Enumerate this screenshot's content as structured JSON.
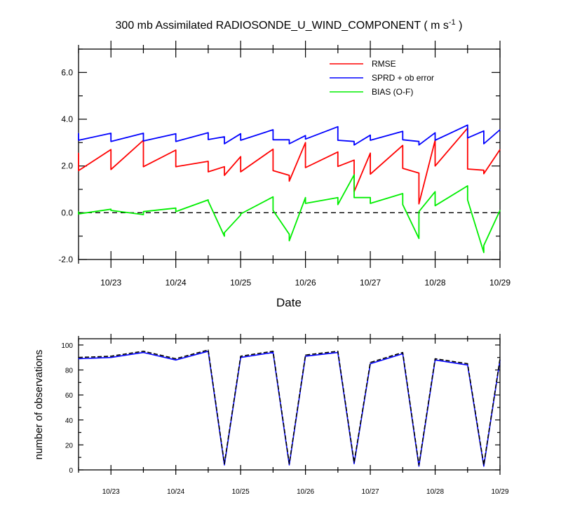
{
  "figure_title": {
    "main": "300 mb Assimilated RADIOSONDE_U_WIND_COMPONENT ( m s",
    "sup": "-1",
    "close": " )"
  },
  "chart_data": [
    {
      "type": "line",
      "title": "300 mb Assimilated RADIOSONDE_U_WIND_COMPONENT ( m s-1 )",
      "xlabel": "Date",
      "ylabel": "",
      "xlim": [
        22.5,
        29.0
      ],
      "ylim": [
        -2.0,
        7.0
      ],
      "x_tick_values": [
        23,
        24,
        25,
        26,
        27,
        28,
        29
      ],
      "x_tick_labels": [
        "10/23",
        "10/24",
        "10/25",
        "10/26",
        "10/27",
        "10/28",
        "10/29"
      ],
      "y_tick_values": [
        -2.0,
        0.0,
        2.0,
        4.0,
        6.0
      ],
      "y_tick_labels": [
        "-2.0",
        "0.0",
        "2.0",
        "4.0",
        "6.0"
      ],
      "legend_position": "top-right",
      "reference_line": {
        "y": 0.0,
        "style": "dashed",
        "color": "#000000"
      },
      "series": [
        {
          "name": "RMSE",
          "color": "#ff0000",
          "x": [
            22.5,
            22.5,
            23.0,
            23.0,
            23.5,
            23.5,
            24.0,
            24.0,
            24.5,
            24.5,
            24.75,
            24.75,
            25.0,
            25.0,
            25.5,
            25.5,
            25.75,
            25.75,
            26.0,
            26.0,
            26.5,
            26.5,
            26.75,
            26.75,
            27.0,
            27.0,
            27.5,
            27.5,
            27.75,
            27.75,
            28.0,
            28.0,
            28.5,
            28.5,
            28.75,
            28.75,
            29.0
          ],
          "y": [
            2.55,
            1.8,
            2.7,
            1.85,
            3.1,
            1.97,
            2.68,
            1.97,
            2.2,
            1.75,
            1.97,
            1.6,
            2.4,
            1.75,
            2.72,
            1.8,
            1.6,
            1.35,
            3.0,
            1.93,
            2.6,
            1.98,
            2.25,
            0.9,
            2.55,
            1.65,
            2.88,
            1.9,
            1.7,
            0.38,
            3.1,
            2.0,
            3.62,
            1.87,
            1.82,
            1.67,
            2.7
          ]
        },
        {
          "name": "SPRD + ob error",
          "color": "#0000ff",
          "x": [
            22.5,
            22.5,
            23.0,
            23.0,
            23.5,
            23.5,
            24.0,
            24.0,
            24.5,
            24.5,
            24.75,
            24.75,
            25.0,
            25.0,
            25.5,
            25.5,
            25.75,
            25.75,
            26.0,
            26.0,
            26.5,
            26.5,
            26.75,
            26.75,
            27.0,
            27.0,
            27.5,
            27.5,
            27.75,
            27.75,
            28.0,
            28.0,
            28.5,
            28.5,
            28.75,
            28.75,
            29.0
          ],
          "y": [
            3.4,
            3.1,
            3.4,
            3.05,
            3.4,
            3.07,
            3.38,
            3.05,
            3.42,
            3.13,
            3.25,
            2.95,
            3.38,
            3.1,
            3.55,
            3.12,
            3.12,
            2.95,
            3.3,
            3.15,
            3.68,
            3.1,
            3.05,
            2.9,
            3.32,
            3.1,
            3.48,
            3.12,
            3.05,
            2.9,
            3.42,
            3.1,
            3.75,
            3.2,
            3.5,
            2.95,
            3.55
          ]
        },
        {
          "name": "BIAS (O-F)",
          "color": "#00ee00",
          "x": [
            22.5,
            22.5,
            23.0,
            23.0,
            23.5,
            23.5,
            24.0,
            24.0,
            24.5,
            24.5,
            24.75,
            24.75,
            25.0,
            25.0,
            25.5,
            25.5,
            25.75,
            25.75,
            26.0,
            26.0,
            26.5,
            26.5,
            26.75,
            26.75,
            27.0,
            27.0,
            27.5,
            27.5,
            27.75,
            27.75,
            28.0,
            28.0,
            28.5,
            28.5,
            28.75,
            28.75,
            29.0
          ],
          "y": [
            0.05,
            -0.05,
            0.15,
            0.1,
            -0.08,
            0.05,
            0.2,
            0.05,
            0.55,
            0.5,
            -1.0,
            -0.85,
            -0.1,
            -0.05,
            0.68,
            0.1,
            -0.92,
            -1.2,
            0.65,
            0.4,
            0.65,
            0.35,
            1.62,
            0.65,
            0.65,
            0.4,
            0.82,
            0.35,
            -1.1,
            0.05,
            0.9,
            0.3,
            1.15,
            0.55,
            -1.7,
            -1.4,
            0.1
          ]
        }
      ]
    },
    {
      "type": "line",
      "xlabel": "",
      "ylabel": "number of observations",
      "xlim": [
        22.5,
        29.0
      ],
      "ylim": [
        0,
        105
      ],
      "x_tick_values": [
        23,
        24,
        25,
        26,
        27,
        28,
        29
      ],
      "x_tick_labels": [
        "10/23",
        "10/24",
        "10/25",
        "10/26",
        "10/27",
        "10/28",
        "10/29"
      ],
      "y_tick_values": [
        0,
        20,
        40,
        60,
        80,
        100
      ],
      "y_tick_labels": [
        "0",
        "20",
        "40",
        "60",
        "80",
        "100"
      ],
      "series": [
        {
          "style": "solid",
          "color": "#0000ff",
          "x": [
            22.5,
            23.0,
            23.5,
            24.0,
            24.5,
            24.75,
            25.0,
            25.5,
            25.75,
            26.0,
            26.5,
            26.75,
            27.0,
            27.5,
            27.75,
            28.0,
            28.5,
            28.75,
            29.0
          ],
          "y": [
            89,
            90,
            94,
            88,
            95,
            4,
            90,
            94,
            4,
            91,
            94,
            5,
            85,
            93,
            3,
            88,
            84,
            3,
            88
          ]
        },
        {
          "style": "dashed",
          "color": "#000000",
          "x": [
            22.5,
            23.0,
            23.5,
            24.0,
            24.5,
            24.75,
            25.0,
            25.5,
            25.75,
            26.0,
            26.5,
            26.75,
            27.0,
            27.5,
            27.75,
            28.0,
            28.5,
            28.75,
            29.0
          ],
          "y": [
            90,
            91,
            95,
            89,
            96,
            5,
            91,
            95,
            5,
            92,
            95,
            6,
            86,
            94,
            4,
            89,
            85,
            4,
            89
          ]
        }
      ]
    }
  ]
}
